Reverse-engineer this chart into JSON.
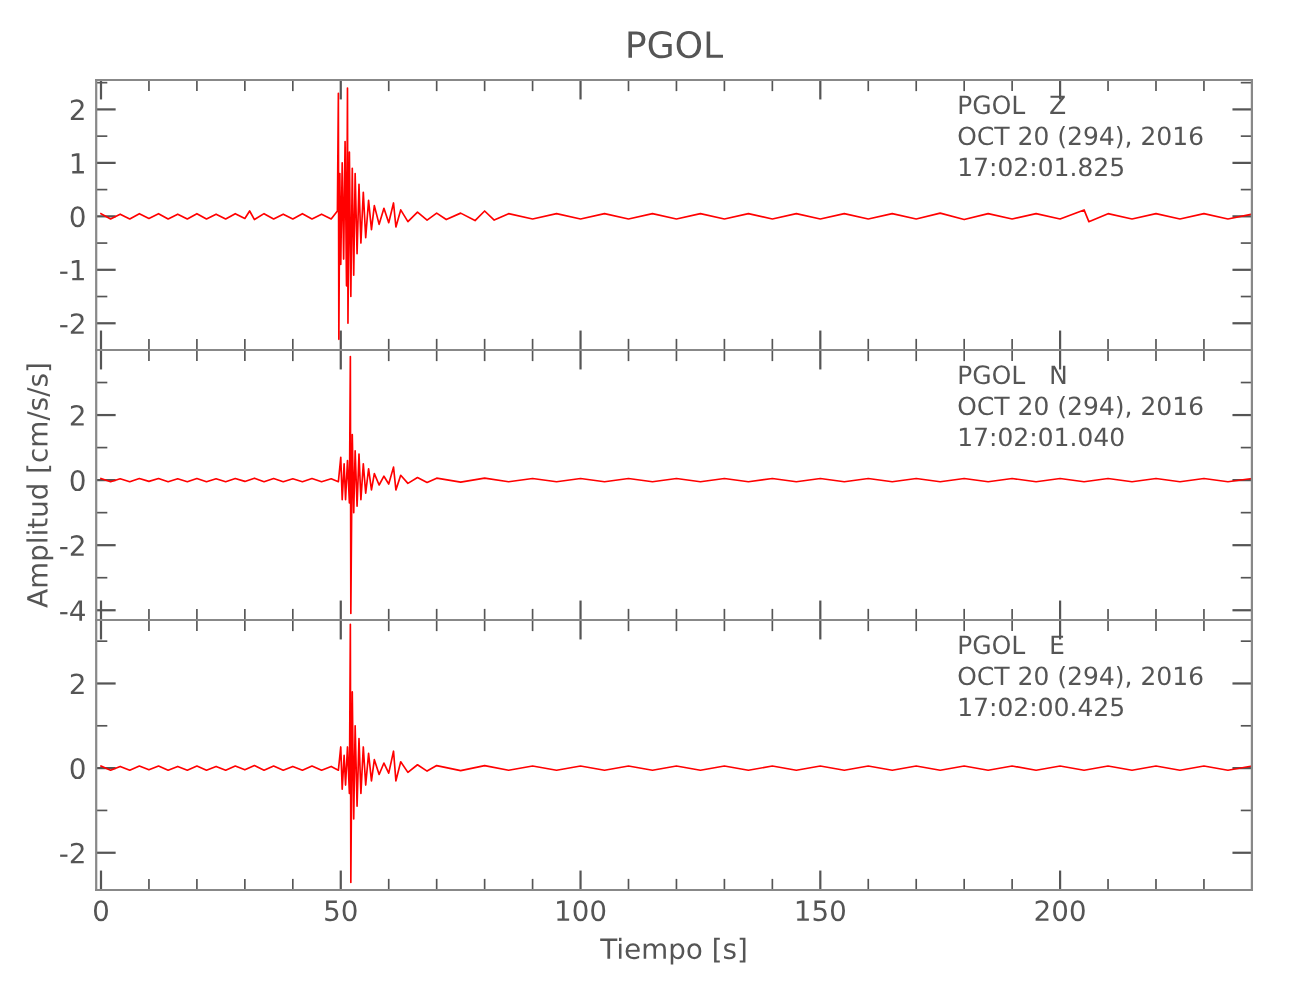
{
  "chart_data": [
    {
      "type": "line",
      "title": "PGOL",
      "xlim": [
        -1,
        240
      ],
      "ylim": [
        -2.5,
        2.55
      ],
      "tick_labels": "y",
      "grid": false,
      "legend": false,
      "marker": "none",
      "line_style": "solid",
      "xticks": [
        0,
        {
          "value": 10,
          "label": null
        },
        {
          "value": 20,
          "label": null
        },
        {
          "value": 30,
          "label": null
        },
        {
          "value": 40,
          "label": null
        },
        50,
        {
          "value": 60,
          "label": null
        },
        {
          "value": 70,
          "label": null
        },
        {
          "value": 80,
          "label": null
        },
        {
          "value": 90,
          "label": null
        },
        100,
        {
          "value": 110,
          "label": null
        },
        {
          "value": 120,
          "label": null
        },
        {
          "value": 130,
          "label": null
        },
        {
          "value": 140,
          "label": null
        },
        150,
        {
          "value": 160,
          "label": null
        },
        {
          "value": 170,
          "label": null
        },
        {
          "value": 180,
          "label": null
        },
        {
          "value": 190,
          "label": null
        },
        200,
        {
          "value": 210,
          "label": null
        },
        {
          "value": 220,
          "label": null
        },
        {
          "value": 230,
          "label": null
        }
      ],
      "yticks": [
        {
          "value": -2.5,
          "label": null
        },
        -2,
        {
          "value": -1.5,
          "label": null
        },
        -1,
        {
          "value": -0.5,
          "label": null
        },
        0,
        {
          "value": 0.5,
          "label": null
        },
        1,
        {
          "value": 1.5,
          "label": null
        },
        2,
        {
          "value": 2.5,
          "label": null
        }
      ],
      "annotations": [
        "PGOL   Z",
        "OCT 20 (294), 2016",
        "17:02:01.825"
      ],
      "series": [
        {
          "color": "#ff0000",
          "x": [
            0,
            2,
            4,
            6,
            8,
            10,
            12,
            14,
            16,
            18,
            20,
            22,
            24,
            26,
            28,
            30,
            31,
            32,
            34,
            36,
            38,
            40,
            42,
            44,
            46,
            48,
            49.3,
            49.5,
            49.6,
            49.8,
            50.0,
            50.3,
            50.6,
            50.9,
            51.2,
            51.4,
            51.5,
            51.8,
            52.1,
            52.4,
            52.7,
            53.0,
            53.4,
            53.8,
            54.2,
            54.7,
            55.2,
            55.8,
            56.4,
            57,
            58,
            59,
            60,
            61,
            61.5,
            62.5,
            64,
            66,
            68,
            70,
            72,
            75,
            78,
            80,
            82,
            85,
            90,
            95,
            100,
            105,
            110,
            115,
            120,
            125,
            130,
            135,
            140,
            145,
            150,
            155,
            160,
            165,
            170,
            175,
            180,
            185,
            190,
            195,
            200,
            205,
            206,
            210,
            215,
            220,
            225,
            230,
            235,
            240
          ],
          "values": [
            0.05,
            -0.05,
            0.04,
            -0.05,
            0.05,
            -0.04,
            0.05,
            -0.05,
            0.04,
            -0.05,
            0.05,
            -0.05,
            0.04,
            -0.05,
            0.05,
            -0.04,
            0.1,
            -0.06,
            0.05,
            -0.05,
            0.04,
            -0.05,
            0.05,
            -0.05,
            0.04,
            -0.05,
            0.1,
            2.3,
            -2.3,
            0.8,
            -0.9,
            1.0,
            -0.8,
            1.4,
            -1.3,
            2.4,
            -2.0,
            1.2,
            -1.5,
            0.9,
            -1.1,
            0.8,
            -0.7,
            0.6,
            -0.5,
            0.45,
            -0.4,
            0.3,
            -0.25,
            0.2,
            -0.15,
            0.15,
            -0.12,
            0.25,
            -0.2,
            0.12,
            -0.1,
            0.08,
            -0.07,
            0.06,
            -0.06,
            0.06,
            -0.08,
            0.1,
            -0.07,
            0.05,
            -0.05,
            0.05,
            -0.05,
            0.05,
            -0.05,
            0.05,
            -0.05,
            0.05,
            -0.05,
            0.05,
            -0.05,
            0.05,
            -0.05,
            0.05,
            -0.05,
            0.05,
            -0.05,
            0.06,
            -0.06,
            0.05,
            -0.05,
            0.05,
            -0.05,
            0.12,
            -0.1,
            0.05,
            -0.05,
            0.05,
            -0.05,
            0.05,
            -0.05,
            0.04
          ]
        }
      ]
    },
    {
      "type": "line",
      "ylabel": "Amplitud [cm/s/s]",
      "xlim": [
        -1,
        240
      ],
      "ylim": [
        -4.3,
        4.0
      ],
      "tick_labels": "y",
      "grid": false,
      "legend": false,
      "marker": "none",
      "line_style": "solid",
      "xticks": [
        0,
        {
          "value": 10,
          "label": null
        },
        {
          "value": 20,
          "label": null
        },
        {
          "value": 30,
          "label": null
        },
        {
          "value": 40,
          "label": null
        },
        50,
        {
          "value": 60,
          "label": null
        },
        {
          "value": 70,
          "label": null
        },
        {
          "value": 80,
          "label": null
        },
        {
          "value": 90,
          "label": null
        },
        100,
        {
          "value": 110,
          "label": null
        },
        {
          "value": 120,
          "label": null
        },
        {
          "value": 130,
          "label": null
        },
        {
          "value": 140,
          "label": null
        },
        150,
        {
          "value": 160,
          "label": null
        },
        {
          "value": 170,
          "label": null
        },
        {
          "value": 180,
          "label": null
        },
        {
          "value": 190,
          "label": null
        },
        200,
        {
          "value": 210,
          "label": null
        },
        {
          "value": 220,
          "label": null
        },
        {
          "value": 230,
          "label": null
        }
      ],
      "yticks": [
        -4,
        {
          "value": -3,
          "label": null
        },
        -2,
        {
          "value": -1,
          "label": null
        },
        0,
        {
          "value": 1,
          "label": null
        },
        2,
        {
          "value": 3,
          "label": null
        }
      ],
      "annotations": [
        "PGOL   N",
        "OCT 20 (294), 2016",
        "17:02:01.040"
      ],
      "series": [
        {
          "color": "#ff0000",
          "x": [
            0,
            2,
            4,
            6,
            8,
            10,
            12,
            14,
            16,
            18,
            20,
            22,
            24,
            26,
            28,
            30,
            32,
            34,
            36,
            38,
            40,
            42,
            44,
            46,
            48,
            49.5,
            50.0,
            50.3,
            50.7,
            51.0,
            51.4,
            51.8,
            52.0,
            52.1,
            52.4,
            52.7,
            53.0,
            53.4,
            53.8,
            54.2,
            54.7,
            55.2,
            55.8,
            56.4,
            57,
            58,
            59,
            60,
            61,
            61.5,
            62.5,
            64,
            66,
            68,
            70,
            75,
            80,
            85,
            90,
            95,
            100,
            105,
            110,
            115,
            120,
            125,
            130,
            135,
            140,
            145,
            150,
            155,
            160,
            165,
            170,
            175,
            180,
            185,
            190,
            195,
            200,
            205,
            210,
            215,
            220,
            225,
            230,
            235,
            240
          ],
          "values": [
            0.05,
            -0.05,
            0.04,
            -0.05,
            0.05,
            -0.04,
            0.05,
            -0.05,
            0.04,
            -0.05,
            0.05,
            -0.05,
            0.04,
            -0.05,
            0.05,
            -0.04,
            0.06,
            -0.05,
            0.05,
            -0.05,
            0.04,
            -0.05,
            0.05,
            -0.05,
            0.04,
            -0.05,
            0.7,
            -0.6,
            0.5,
            -0.6,
            0.6,
            -0.7,
            3.8,
            -4.1,
            1.4,
            -1.0,
            0.9,
            -0.8,
            0.8,
            -0.6,
            0.5,
            -0.4,
            0.35,
            -0.3,
            0.2,
            -0.15,
            0.12,
            -0.12,
            0.4,
            -0.3,
            0.15,
            -0.1,
            0.08,
            -0.07,
            0.06,
            -0.06,
            0.06,
            -0.05,
            0.05,
            -0.05,
            0.05,
            -0.05,
            0.05,
            -0.05,
            0.05,
            -0.05,
            0.05,
            -0.05,
            0.05,
            -0.05,
            0.05,
            -0.05,
            0.05,
            -0.05,
            0.05,
            -0.05,
            0.05,
            -0.05,
            0.05,
            -0.05,
            0.05,
            -0.05,
            0.05,
            -0.05,
            0.05,
            -0.05,
            0.05,
            -0.05,
            0.05
          ]
        }
      ]
    },
    {
      "type": "line",
      "xlabel": "Tiempo [s]",
      "xlim": [
        -1,
        240
      ],
      "ylim": [
        -2.88,
        3.5
      ],
      "grid": false,
      "legend": false,
      "marker": "none",
      "line_style": "solid",
      "xticks": [
        0,
        {
          "value": 10,
          "label": null
        },
        {
          "value": 20,
          "label": null
        },
        {
          "value": 30,
          "label": null
        },
        {
          "value": 40,
          "label": null
        },
        50,
        {
          "value": 60,
          "label": null
        },
        {
          "value": 70,
          "label": null
        },
        {
          "value": 80,
          "label": null
        },
        {
          "value": 90,
          "label": null
        },
        100,
        {
          "value": 110,
          "label": null
        },
        {
          "value": 120,
          "label": null
        },
        {
          "value": 130,
          "label": null
        },
        {
          "value": 140,
          "label": null
        },
        150,
        {
          "value": 160,
          "label": null
        },
        {
          "value": 170,
          "label": null
        },
        {
          "value": 180,
          "label": null
        },
        {
          "value": 190,
          "label": null
        },
        200,
        {
          "value": 210,
          "label": null
        },
        {
          "value": 220,
          "label": null
        },
        {
          "value": 230,
          "label": null
        }
      ],
      "yticks": [
        -2,
        {
          "value": -1,
          "label": null
        },
        0,
        {
          "value": 1,
          "label": null
        },
        2,
        {
          "value": 3,
          "label": null
        }
      ],
      "annotations": [
        "PGOL   E",
        "OCT 20 (294), 2016",
        "17:02:00.425"
      ],
      "series": [
        {
          "color": "#ff0000",
          "x": [
            0,
            2,
            4,
            6,
            8,
            10,
            12,
            14,
            16,
            18,
            20,
            22,
            24,
            26,
            28,
            30,
            32,
            34,
            36,
            38,
            40,
            42,
            44,
            46,
            48,
            49.5,
            50.0,
            50.3,
            50.7,
            51.0,
            51.4,
            51.8,
            52.0,
            52.1,
            52.4,
            52.7,
            53.0,
            53.4,
            53.8,
            54.2,
            54.7,
            55.2,
            55.8,
            56.4,
            57,
            58,
            59,
            60,
            61,
            61.5,
            62.5,
            64,
            66,
            68,
            70,
            75,
            80,
            85,
            90,
            95,
            100,
            105,
            110,
            115,
            120,
            125,
            130,
            135,
            140,
            145,
            150,
            155,
            160,
            165,
            170,
            175,
            180,
            185,
            190,
            195,
            200,
            205,
            210,
            215,
            220,
            225,
            230,
            235,
            240
          ],
          "values": [
            0.05,
            -0.05,
            0.04,
            -0.05,
            0.05,
            -0.04,
            0.05,
            -0.05,
            0.04,
            -0.05,
            0.05,
            -0.05,
            0.04,
            -0.05,
            0.05,
            -0.04,
            0.06,
            -0.05,
            0.05,
            -0.05,
            0.04,
            -0.05,
            0.05,
            -0.05,
            0.04,
            -0.05,
            0.5,
            -0.5,
            0.3,
            -0.4,
            0.5,
            -0.6,
            3.4,
            -2.7,
            1.8,
            -1.2,
            1.0,
            -0.9,
            0.7,
            -0.6,
            0.5,
            -0.4,
            0.35,
            -0.3,
            0.2,
            -0.15,
            0.12,
            -0.12,
            0.4,
            -0.3,
            0.15,
            -0.1,
            0.08,
            -0.07,
            0.06,
            -0.06,
            0.06,
            -0.05,
            0.05,
            -0.05,
            0.05,
            -0.05,
            0.05,
            -0.05,
            0.05,
            -0.05,
            0.05,
            -0.05,
            0.05,
            -0.05,
            0.05,
            -0.05,
            0.05,
            -0.05,
            0.05,
            -0.05,
            0.05,
            -0.05,
            0.05,
            -0.05,
            0.05,
            -0.05,
            0.05,
            -0.05,
            0.05,
            -0.05,
            0.05,
            -0.05,
            0.05
          ]
        }
      ]
    }
  ]
}
